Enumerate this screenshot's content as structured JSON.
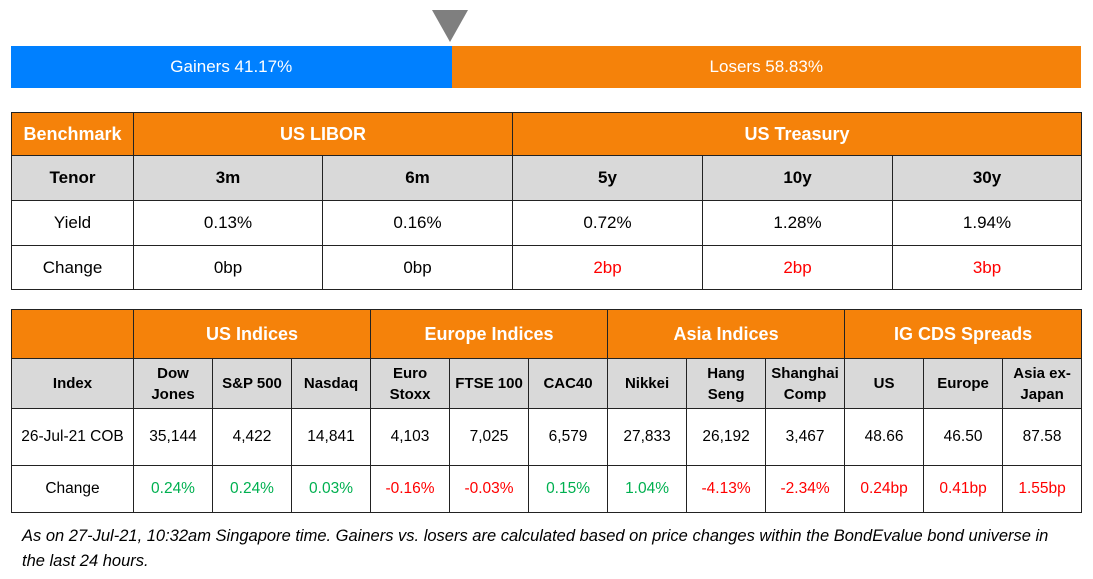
{
  "breadth": {
    "gainers_label": "Gainers 41.17%",
    "losers_label": "Losers 58.83%",
    "gainers_pct": 41.17,
    "losers_pct": 58.83,
    "gainers_color": "#0080ff",
    "losers_color": "#f5820a"
  },
  "rates": {
    "benchmark_label": "Benchmark",
    "libor_label": "US LIBOR",
    "treasury_label": "US Treasury",
    "tenor_label": "Tenor",
    "tenors": [
      "3m",
      "6m",
      "5y",
      "10y",
      "30y"
    ],
    "yield_label": "Yield",
    "yields": [
      "0.13%",
      "0.16%",
      "0.72%",
      "1.28%",
      "1.94%"
    ],
    "change_label": "Change",
    "changes": [
      {
        "v": "0bp",
        "dir": "flat"
      },
      {
        "v": "0bp",
        "dir": "flat"
      },
      {
        "v": "2bp",
        "dir": "dn"
      },
      {
        "v": "2bp",
        "dir": "dn"
      },
      {
        "v": "3bp",
        "dir": "dn"
      }
    ]
  },
  "indices": {
    "groups": [
      "US Indices",
      "Europe Indices",
      "Asia Indices",
      "IG CDS Spreads"
    ],
    "index_label": "Index",
    "names": [
      [
        "Dow",
        "Jones"
      ],
      [
        "S&P 500"
      ],
      [
        "Nasdaq"
      ],
      [
        "Euro",
        "Stoxx"
      ],
      [
        "FTSE 100"
      ],
      [
        "CAC40"
      ],
      [
        "Nikkei"
      ],
      [
        "Hang",
        "Seng"
      ],
      [
        "Shanghai",
        "Comp"
      ],
      [
        "US"
      ],
      [
        "Europe"
      ],
      [
        "Asia ex-",
        "Japan"
      ]
    ],
    "date_label": "26-Jul-21 COB",
    "values": [
      "35,144",
      "4,422",
      "14,841",
      "4,103",
      "7,025",
      "6,579",
      "27,833",
      "26,192",
      "3,467",
      "48.66",
      "46.50",
      "87.58"
    ],
    "change_label": "Change",
    "changes": [
      {
        "v": "0.24%",
        "dir": "up"
      },
      {
        "v": "0.24%",
        "dir": "up"
      },
      {
        "v": "0.03%",
        "dir": "up"
      },
      {
        "v": "-0.16%",
        "dir": "dn"
      },
      {
        "v": "-0.03%",
        "dir": "dn"
      },
      {
        "v": "0.15%",
        "dir": "up"
      },
      {
        "v": "1.04%",
        "dir": "up"
      },
      {
        "v": "-4.13%",
        "dir": "dn"
      },
      {
        "v": "-2.34%",
        "dir": "dn"
      },
      {
        "v": "0.24bp",
        "dir": "dn"
      },
      {
        "v": "0.41bp",
        "dir": "dn"
      },
      {
        "v": "1.55bp",
        "dir": "dn"
      }
    ]
  },
  "footnote": "As on 27-Jul-21, 10:32am Singapore time. Gainers vs. losers are calculated based on price changes within the BondEvalue bond universe in the last 24 hours."
}
